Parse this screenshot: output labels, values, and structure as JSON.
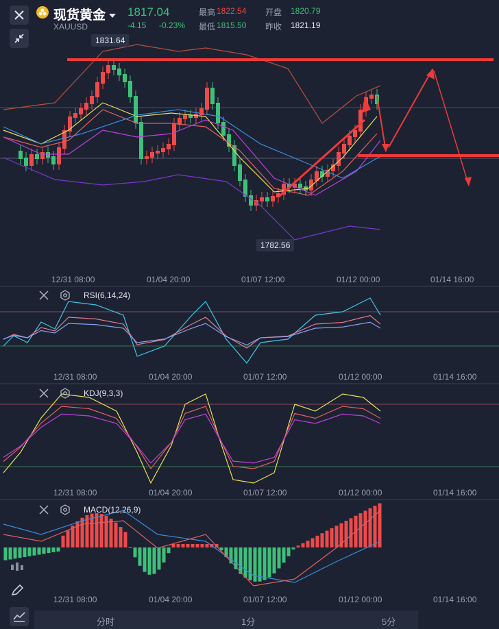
{
  "header": {
    "close_icon": "close-icon",
    "name": "现货黄金",
    "symbol": "XAUUSD",
    "price": "1817.04",
    "change": "-4.15",
    "change_pct": "-0.23%",
    "high_label": "最高",
    "high_value": "1822.54",
    "low_label": "最低",
    "low_value": "1815.50",
    "open_label": "开盘",
    "open_value": "1820.79",
    "prev_label": "昨收",
    "prev_value": "1821.19"
  },
  "main_chart": {
    "high_tag": "1831.64",
    "low_tag": "1782.56",
    "x_ticks": [
      "12/31 08:00",
      "01/04 20:00",
      "01/07 12:00",
      "01/12 00:00",
      "01/14 16:00"
    ]
  },
  "rsi_panel": {
    "title": "RSI(6,14,24)",
    "x_ticks": [
      "12/31 08:00",
      "01/04 20:00",
      "01/07 12:00",
      "01/12 00:00",
      "01/14 16:00"
    ]
  },
  "kdj_panel": {
    "title": "KDJ(9,3,3)",
    "x_ticks": [
      "12/31 08:00",
      "01/04 20:00",
      "01/07 12:00",
      "01/12 00:00",
      "01/14 16:00"
    ]
  },
  "macd_panel": {
    "title": "MACD(12,26,9)",
    "x_ticks": [
      "12/31 08:00",
      "01/04 20:00",
      "01/07 12:00",
      "01/12 00:00",
      "01/14 16:00"
    ]
  },
  "bottom_tabs": [
    "分时",
    "1分",
    "5分"
  ],
  "colors": {
    "up": "#ee4a4a",
    "down": "#3ec07a",
    "bg": "#1c2232",
    "annot": "#ee3a3a"
  }
}
